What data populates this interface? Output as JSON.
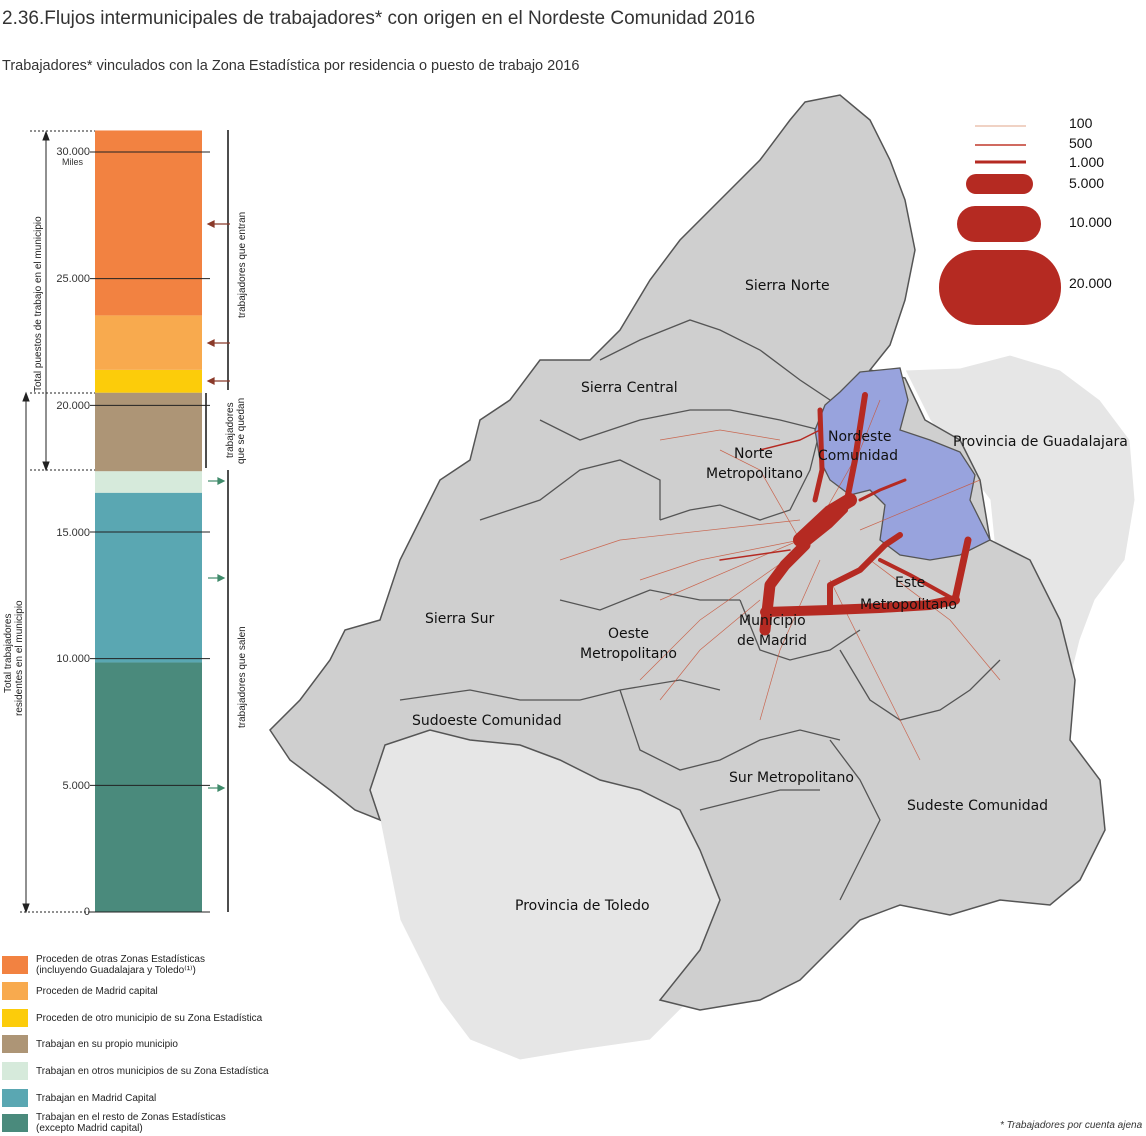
{
  "title": "2.36.Flujos intermunicipales de trabajadores* con origen en el Nordeste Comunidad 2016",
  "subtitle": "Trabajadores* vinculados con la Zona Estadística por residencia o puesto de trabajo 2016",
  "footnote": "* Trabajadores por cuenta ajena",
  "bar": {
    "unit_label": "Miles",
    "ticks": [
      "30.000",
      "25.000",
      "20.000",
      "15.000",
      "10.000",
      "5.000",
      "0"
    ],
    "tick_values": [
      30000,
      25000,
      20000,
      15000,
      10000,
      5000,
      0
    ],
    "segments": [
      {
        "name": "Trabajan en el resto de Zonas Estadísticas (excepto Madrid capital)",
        "value": 9850,
        "color": "#4a8a7c"
      },
      {
        "name": "Trabajan en Madrid Capital",
        "value": 6700,
        "color": "#5aa7b2"
      },
      {
        "name": "Trabajan en otros municipios de su Zona Estadística",
        "value": 850,
        "color": "#d6eadb"
      },
      {
        "name": "Trabajan en su propio municipio",
        "value": 3100,
        "color": "#ad9576"
      },
      {
        "name": "Proceden de otro municipio de su Zona Estadística",
        "value": 900,
        "color": "#fccc0a"
      },
      {
        "name": "Proceden de Madrid capital",
        "value": 2150,
        "color": "#f8aa4e"
      },
      {
        "name": "Proceden de otras Zonas Estadísticas (incluyendo Guadalajara y Toledo)",
        "value": 7300,
        "color": "#f28241"
      }
    ],
    "axis_max": 30800,
    "left_label_top": "Total puestos de trabajo en el municipio",
    "left_label_bottom_1": "Total trabajadores",
    "left_label_bottom_2": "residentes en el municipio",
    "right_label_in": "trabajadores que entran",
    "right_label_stay_1": "trabajadores",
    "right_label_stay_2": "que se quedan",
    "right_label_out": "trabajadores que salen"
  },
  "legend": [
    {
      "label_1": "Proceden de otras Zonas Estadísticas",
      "label_2": "(incluyendo Guadalajara y Toledo⁽¹⁾)",
      "color": "#f28241"
    },
    {
      "label_1": "Proceden de Madrid capital",
      "label_2": "",
      "color": "#f8aa4e"
    },
    {
      "label_1": "Proceden de otro municipio de su Zona Estadística",
      "label_2": "",
      "color": "#fccc0a"
    },
    {
      "label_1": "Trabajan en su propio municipio",
      "label_2": "",
      "color": "#ad9576"
    },
    {
      "label_1": "Trabajan en otros municipios de su Zona Estadística",
      "label_2": "",
      "color": "#d6eadb"
    },
    {
      "label_1": "Trabajan en Madrid Capital",
      "label_2": "",
      "color": "#5aa7b2"
    },
    {
      "label_1": "Trabajan en el resto de Zonas Estadísticas",
      "label_2": " (excepto Madrid capital)",
      "color": "#4a8a7c"
    }
  ],
  "flow_legend": [
    "100",
    "500",
    "1.000",
    "5.000",
    "10.000",
    "20.000"
  ],
  "map": {
    "regions": {
      "sierra_norte": "Sierra Norte",
      "sierra_central": "Sierra Central",
      "nordeste_1": "Nordeste",
      "nordeste_2": "Comunidad",
      "norte_1": "Norte",
      "norte_2": "Metropolitano",
      "guadalajara": "Provincia de Guadalajara",
      "sierra_sur": "Sierra Sur",
      "oeste_1": "Oeste",
      "oeste_2": "Metropolitano",
      "madrid_1": "Municipio",
      "madrid_2": "de Madrid",
      "este_1": "Este",
      "este_2": "Metropolitano",
      "sudoeste": "Sudoeste Comunidad",
      "sur": "Sur Metropolitano",
      "sudeste": "Sudeste Comunidad",
      "toledo": "Provincia de Toledo"
    },
    "colors": {
      "region_fill": "#cfcfcf",
      "outer_fill": "#e6e6e6",
      "highlight": "#98a3dd",
      "flow": "#b52a22"
    }
  }
}
